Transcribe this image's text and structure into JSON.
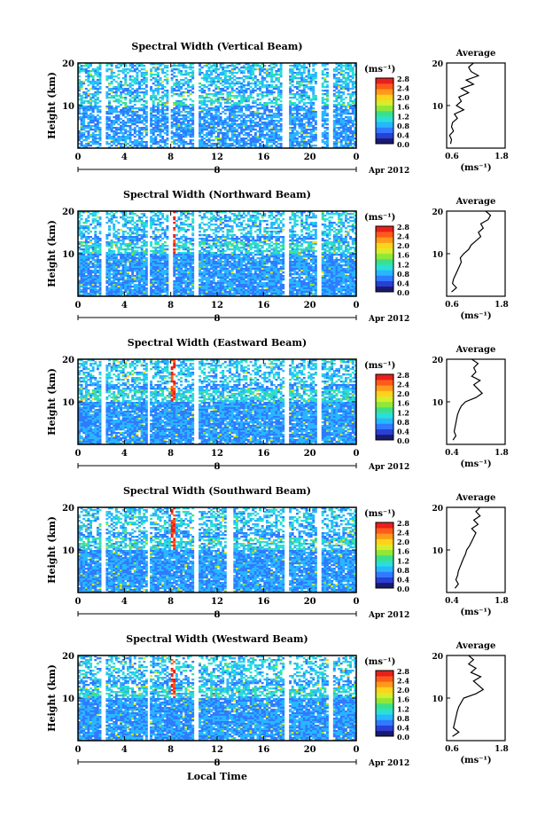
{
  "figure": {
    "xlabel": "Local Time",
    "date_label": "Apr 2012",
    "day_label": "8",
    "unit_label": "(ms⁻¹)",
    "average_title": "Average"
  },
  "colorscale": {
    "ticks": [
      "2.8",
      "2.4",
      "2.0",
      "1.6",
      "1.2",
      "0.8",
      "0.4",
      "0.0"
    ],
    "colors": [
      "#1a1a6e",
      "#2a3fd6",
      "#2f7bff",
      "#29b6ff",
      "#29e0d8",
      "#3de08a",
      "#8ee83a",
      "#d9ec2a",
      "#ffd21c",
      "#ff9a1a",
      "#ff5a1a",
      "#e8201c"
    ]
  },
  "chart_data": [
    {
      "type": "heatmap",
      "title": "Spectral Width (Vertical Beam)",
      "ylabel": "Height (km)",
      "xlim": [
        0,
        24
      ],
      "ylim": [
        0,
        20
      ],
      "xticks": [
        "0",
        "4",
        "8",
        "12",
        "16",
        "20",
        "0"
      ],
      "yticks": [
        "20",
        "10"
      ],
      "colorbar_range": [
        0.0,
        3.0
      ],
      "data_gaps_hours": [
        [
          2.0,
          2.4
        ],
        [
          5.9,
          6.3
        ],
        [
          7.8,
          8.1
        ],
        [
          10.0,
          10.3
        ],
        [
          17.7,
          18.1
        ],
        [
          20.6,
          21.0
        ],
        [
          21.6,
          22.0
        ]
      ],
      "average_profile": {
        "xlim": [
          0.6,
          1.8
        ],
        "xticks": [
          "0.6",
          "1.8"
        ],
        "xlabel": "(ms⁻¹)",
        "height_km": [
          1,
          2,
          3,
          4,
          5,
          6,
          7,
          8,
          9,
          10,
          11,
          12,
          13,
          14,
          15,
          16,
          17,
          18,
          19,
          20
        ],
        "width_ms": [
          0.68,
          0.7,
          0.66,
          0.74,
          0.7,
          0.72,
          0.82,
          0.76,
          0.95,
          0.8,
          0.9,
          0.85,
          1.05,
          0.9,
          1.15,
          1.0,
          1.25,
          1.1,
          1.05,
          1.15
        ]
      }
    },
    {
      "type": "heatmap",
      "title": "Spectral Width (Northward Beam)",
      "ylabel": "Height (km)",
      "xlim": [
        0,
        24
      ],
      "ylim": [
        0,
        20
      ],
      "xticks": [
        "0",
        "4",
        "8",
        "12",
        "16",
        "20",
        "0"
      ],
      "yticks": [
        "20",
        "10"
      ],
      "colorbar_range": [
        0.0,
        3.0
      ],
      "data_gaps_hours": [
        [
          2.0,
          2.4
        ],
        [
          5.9,
          6.3
        ],
        [
          7.9,
          8.2
        ],
        [
          10.0,
          10.3
        ],
        [
          17.8,
          18.2
        ],
        [
          20.6,
          21.0
        ]
      ],
      "average_profile": {
        "xlim": [
          0.6,
          1.8
        ],
        "xticks": [
          "0.6",
          "1.8"
        ],
        "xlabel": "(ms⁻¹)",
        "height_km": [
          1,
          2,
          3,
          4,
          5,
          6,
          7,
          8,
          9,
          10,
          11,
          12,
          13,
          14,
          15,
          16,
          17,
          18,
          19,
          20
        ],
        "width_ms": [
          0.7,
          0.8,
          0.72,
          0.74,
          0.78,
          0.82,
          0.86,
          0.9,
          0.88,
          0.95,
          1.05,
          1.1,
          1.2,
          1.3,
          1.25,
          1.35,
          1.3,
          1.45,
          1.5,
          1.4
        ]
      }
    },
    {
      "type": "heatmap",
      "title": "Spectral Width (Eastward Beam)",
      "ylabel": "Height (km)",
      "xlim": [
        0,
        24
      ],
      "ylim": [
        0,
        20
      ],
      "xticks": [
        "0",
        "4",
        "8",
        "12",
        "16",
        "20",
        "0"
      ],
      "yticks": [
        "20",
        "10"
      ],
      "colorbar_range": [
        0.0,
        3.0
      ],
      "data_gaps_hours": [
        [
          2.0,
          2.4
        ],
        [
          5.9,
          6.3
        ],
        [
          10.0,
          10.3
        ],
        [
          17.8,
          18.2
        ],
        [
          20.6,
          21.0
        ]
      ],
      "average_profile": {
        "xlim": [
          0.4,
          1.8
        ],
        "xticks": [
          "0.4",
          "1.8"
        ],
        "xlabel": "(ms⁻¹)",
        "height_km": [
          1,
          2,
          3,
          4,
          5,
          6,
          7,
          8,
          9,
          10,
          11,
          12,
          13,
          14,
          15,
          16,
          17,
          18,
          19,
          20
        ],
        "width_ms": [
          0.55,
          0.62,
          0.58,
          0.6,
          0.62,
          0.64,
          0.66,
          0.7,
          0.75,
          0.85,
          1.1,
          1.25,
          1.15,
          1.05,
          1.2,
          1.0,
          1.1,
          1.05,
          1.15,
          1.0
        ]
      }
    },
    {
      "type": "heatmap",
      "title": "Spectral Width (Southward Beam)",
      "ylabel": "Height (km)",
      "xlim": [
        0,
        24
      ],
      "ylim": [
        0,
        20
      ],
      "xticks": [
        "0",
        "4",
        "8",
        "12",
        "16",
        "20",
        "0"
      ],
      "yticks": [
        "20",
        "10"
      ],
      "colorbar_range": [
        0.0,
        3.0
      ],
      "data_gaps_hours": [
        [
          2.0,
          2.4
        ],
        [
          5.9,
          6.3
        ],
        [
          10.0,
          10.3
        ],
        [
          12.8,
          13.3
        ],
        [
          17.8,
          18.2
        ],
        [
          20.6,
          21.0
        ]
      ],
      "average_profile": {
        "xlim": [
          0.4,
          1.8
        ],
        "xticks": [
          "0.4",
          "1.8"
        ],
        "xlabel": "(ms⁻¹)",
        "height_km": [
          1,
          2,
          3,
          4,
          5,
          6,
          7,
          8,
          9,
          10,
          11,
          12,
          13,
          14,
          15,
          16,
          17,
          18,
          19,
          20
        ],
        "width_ms": [
          0.6,
          0.68,
          0.62,
          0.66,
          0.68,
          0.72,
          0.76,
          0.8,
          0.85,
          0.88,
          0.95,
          1.0,
          1.05,
          1.1,
          1.0,
          1.15,
          1.05,
          1.2,
          1.1,
          1.2
        ]
      }
    },
    {
      "type": "heatmap",
      "title": "Spectral Width (Westward Beam)",
      "ylabel": "Height (km)",
      "xlim": [
        0,
        24
      ],
      "ylim": [
        0,
        20
      ],
      "xticks": [
        "0",
        "4",
        "8",
        "12",
        "16",
        "20",
        "0"
      ],
      "yticks": [
        "20",
        "10"
      ],
      "colorbar_range": [
        0.0,
        3.0
      ],
      "data_gaps_hours": [
        [
          2.0,
          2.4
        ],
        [
          5.9,
          6.3
        ],
        [
          10.0,
          10.3
        ],
        [
          17.8,
          18.2
        ],
        [
          21.6,
          21.9
        ]
      ],
      "average_profile": {
        "xlim": [
          0.6,
          1.8
        ],
        "xticks": [
          "0.6",
          "1.8"
        ],
        "xlabel": "(ms⁻¹)",
        "height_km": [
          1,
          2,
          3,
          4,
          5,
          6,
          7,
          8,
          9,
          10,
          11,
          12,
          13,
          14,
          15,
          16,
          17,
          18,
          19,
          20
        ],
        "width_ms": [
          0.72,
          0.85,
          0.74,
          0.76,
          0.78,
          0.8,
          0.82,
          0.85,
          0.9,
          0.95,
          1.2,
          1.35,
          1.25,
          1.15,
          1.3,
          1.1,
          1.2,
          1.05,
          1.15,
          1.05
        ]
      }
    }
  ]
}
